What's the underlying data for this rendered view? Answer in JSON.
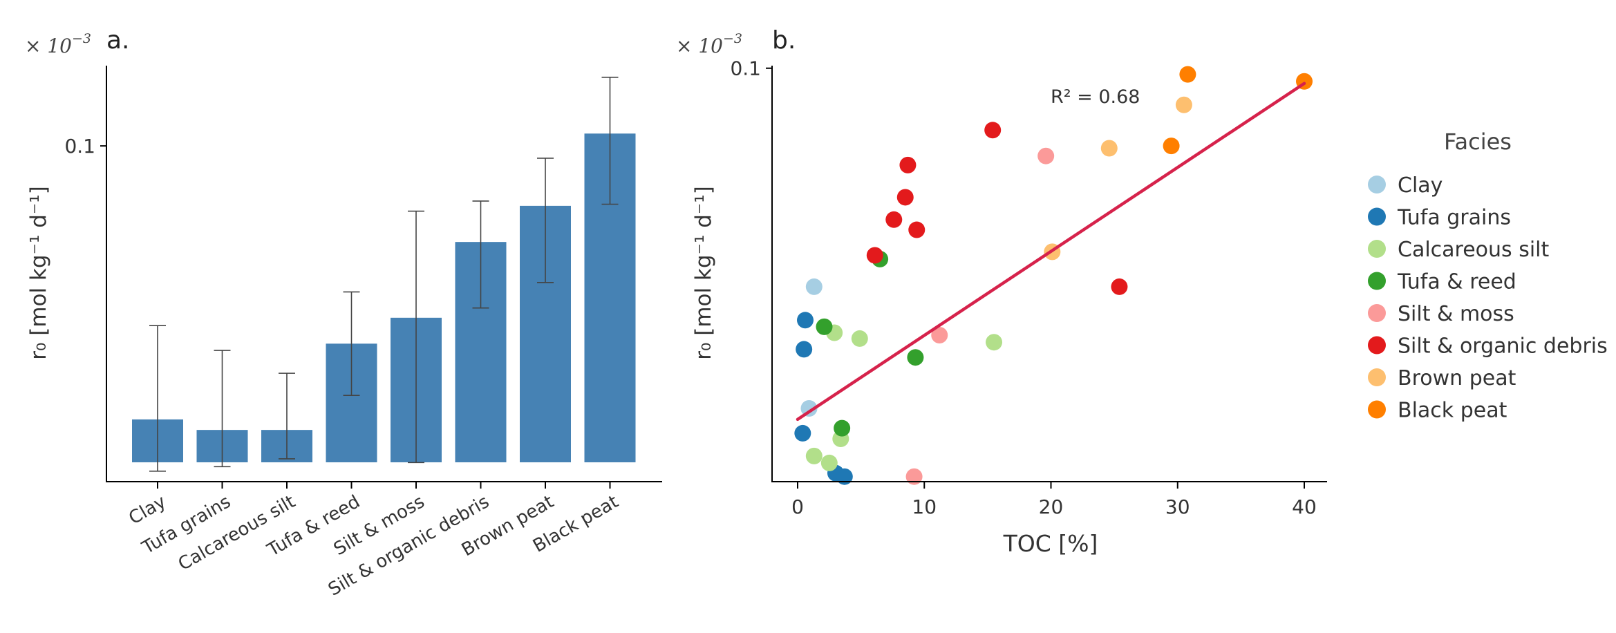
{
  "colors": {
    "bar": "#4682b4",
    "fit_line": "#d6224b",
    "facies": {
      "Clay": "#a6cee3",
      "Tufa grains": "#1f78b4",
      "Calcareous silt": "#b2df8a",
      "Tufa & reed": "#33a02c",
      "Silt & moss": "#fb9a99",
      "Silt & organic debris": "#e31a1c",
      "Brown peat": "#fdbf6f",
      "Black peat": "#ff7f00"
    }
  },
  "chart_data": [
    {
      "panel": "a.",
      "type": "bar",
      "scale_note": {
        "base": "× 10",
        "exponent": "−3"
      },
      "ylabel": "r₀ [mol kg⁻¹ d⁻¹]",
      "yscale": "log",
      "ylim": [
        8e-05,
        0.55
      ],
      "yticks": [
        0.1
      ],
      "ytick_labels": [
        "0.1"
      ],
      "categories": [
        "Clay",
        "Tufa grains",
        "Calcareous silt",
        "Tufa & reed",
        "Silt & moss",
        "Silt & organic debris",
        "Brown peat",
        "Black peat"
      ],
      "values": [
        0.0003,
        0.00024,
        0.00024,
        0.0015,
        0.0026,
        0.013,
        0.028,
        0.13
      ],
      "err_low": [
        0.0001,
        0.00011,
        0.00013,
        0.0005,
        0.00012,
        0.0032,
        0.0055,
        0.029
      ],
      "err_high": [
        0.0022,
        0.0013,
        0.0008,
        0.0045,
        0.025,
        0.031,
        0.077,
        0.43
      ]
    },
    {
      "panel": "b.",
      "type": "scatter",
      "scale_note": {
        "base": "× 10",
        "exponent": "−3"
      },
      "xlabel": "TOC [%]",
      "ylabel": "r₀ [mol kg⁻¹ d⁻¹]",
      "xlim": [
        -2,
        42
      ],
      "xticks": [
        0,
        10,
        20,
        30,
        40
      ],
      "ylim": [
        4e-05,
        0.105
      ],
      "yscale": "log",
      "yticks": [
        0.1
      ],
      "ytick_labels": [
        "0.1"
      ],
      "annotation": "R² = 0.68",
      "fit_line": {
        "x": [
          0,
          40
        ],
        "y": [
          0.00013,
          0.075
        ]
      },
      "legend_title": "Facies",
      "legend_placement": "right, outside",
      "series": [
        {
          "name": "Clay",
          "points": [
            [
              1.3,
              0.0016
            ],
            [
              0.9,
              0.00016
            ]
          ]
        },
        {
          "name": "Tufa grains",
          "points": [
            [
              0.6,
              0.00085
            ],
            [
              0.5,
              0.00049
            ],
            [
              0.4,
              0.0001
            ],
            [
              3.0,
              4.7e-05
            ],
            [
              3.7,
              4.4e-05
            ]
          ]
        },
        {
          "name": "Calcareous silt",
          "points": [
            [
              2.9,
              0.00067
            ],
            [
              4.9,
              0.0006
            ],
            [
              15.5,
              0.00056
            ],
            [
              1.3,
              6.5e-05
            ],
            [
              2.5,
              5.7e-05
            ],
            [
              3.4,
              9e-05
            ]
          ]
        },
        {
          "name": "Tufa & reed",
          "points": [
            [
              2.1,
              0.00075
            ],
            [
              6.5,
              0.0027
            ],
            [
              9.3,
              0.00042
            ],
            [
              3.5,
              0.00011
            ]
          ]
        },
        {
          "name": "Silt & moss",
          "points": [
            [
              19.6,
              0.019
            ],
            [
              11.2,
              0.00064
            ],
            [
              9.2,
              4.4e-05
            ]
          ]
        },
        {
          "name": "Silt & organic debris",
          "points": [
            [
              15.4,
              0.031
            ],
            [
              8.7,
              0.016
            ],
            [
              8.5,
              0.0087
            ],
            [
              7.6,
              0.0057
            ],
            [
              9.4,
              0.0047
            ],
            [
              6.1,
              0.0029
            ],
            [
              25.4,
              0.0016
            ]
          ]
        },
        {
          "name": "Brown peat",
          "points": [
            [
              30.5,
              0.05
            ],
            [
              24.6,
              0.022
            ],
            [
              20.1,
              0.0031
            ]
          ]
        },
        {
          "name": "Black peat",
          "points": [
            [
              30.8,
              0.089
            ],
            [
              40.0,
              0.078
            ],
            [
              29.5,
              0.023
            ]
          ]
        }
      ]
    }
  ]
}
